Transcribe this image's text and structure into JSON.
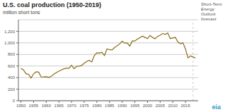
{
  "chart_data": {
    "type": "line",
    "title": "U.S. coal production (1950-2019)",
    "ylabel": "million short tons",
    "x": [
      1950,
      1951,
      1952,
      1953,
      1954,
      1955,
      1956,
      1957,
      1958,
      1959,
      1960,
      1961,
      1962,
      1963,
      1964,
      1965,
      1966,
      1967,
      1968,
      1969,
      1970,
      1971,
      1972,
      1973,
      1974,
      1975,
      1976,
      1977,
      1978,
      1979,
      1980,
      1981,
      1982,
      1983,
      1984,
      1985,
      1986,
      1987,
      1988,
      1989,
      1990,
      1991,
      1992,
      1993,
      1994,
      1995,
      1996,
      1997,
      1998,
      1999,
      2000,
      2001,
      2002,
      2003,
      2004,
      2005,
      2006,
      2007,
      2008,
      2009,
      2010,
      2011,
      2012,
      2013,
      2014,
      2015,
      2016,
      2017,
      2018,
      2019
    ],
    "values": [
      560,
      534,
      467,
      457,
      392,
      465,
      500,
      494,
      411,
      412,
      416,
      403,
      422,
      459,
      487,
      512,
      533,
      552,
      561,
      561,
      613,
      552,
      595,
      599,
      610,
      648,
      679,
      697,
      670,
      781,
      830,
      823,
      838,
      782,
      895,
      883,
      877,
      919,
      951,
      981,
      1029,
      996,
      997,
      945,
      1033,
      1033,
      1064,
      1090,
      1117,
      1094,
      1074,
      1128,
      1094,
      1072,
      1112,
      1132,
      1162,
      1146,
      1171,
      1075,
      1085,
      1095,
      1016,
      985,
      1000,
      896,
      739,
      775,
      756,
      740
    ],
    "color": "#8B6914",
    "xlim": [
      1949,
      2020
    ],
    "xticks": [
      1950,
      1955,
      1960,
      1965,
      1970,
      1975,
      1980,
      1985,
      1990,
      1995,
      2000,
      2005,
      2010,
      2015
    ],
    "ylim": [
      0,
      1400
    ],
    "yticks": [
      0,
      200,
      400,
      600,
      800,
      {
        "value": 1000,
        "label": "1,000"
      },
      {
        "value": 1200,
        "label": "1,200"
      }
    ],
    "grid": true,
    "annotations": [
      {
        "x": 2018,
        "text": "Short-Term\nEnergy\nOutlook\nforecast"
      },
      {
        "text": "eia",
        "color": "#3399CC"
      }
    ]
  }
}
